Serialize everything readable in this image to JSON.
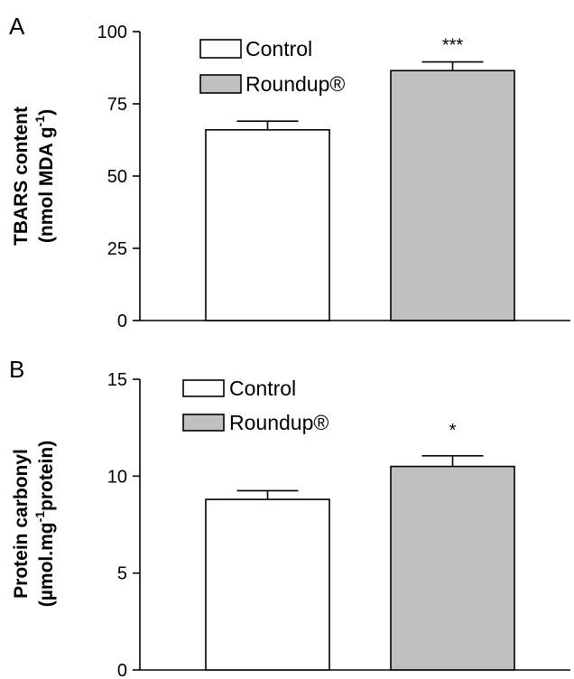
{
  "chart_data": [
    {
      "panel": "A",
      "type": "bar",
      "categories": [
        "Control",
        "Roundup®"
      ],
      "values": [
        66,
        86.5
      ],
      "errors": [
        3,
        3
      ],
      "significance": [
        "",
        "***"
      ],
      "ylabel_line1": "TBARS content",
      "ylabel_line2": "(nmol MDA g",
      "ylabel_sup": "-1",
      "ylabel_line2_end": ")",
      "ylim": [
        0,
        100
      ],
      "yticks": [
        0,
        25,
        50,
        75,
        100
      ],
      "colors": [
        "#ffffff",
        "#c0c0c0"
      ],
      "legend": [
        "Control",
        "Roundup®"
      ],
      "legend_position": "top-left",
      "grid": false
    },
    {
      "panel": "B",
      "type": "bar",
      "categories": [
        "Control",
        "Roundup®"
      ],
      "values": [
        8.8,
        10.5
      ],
      "errors": [
        0.45,
        0.55
      ],
      "significance": [
        "",
        "*"
      ],
      "ylabel_line1": "Protein carbonyl",
      "ylabel_line2": "(µmol.mg",
      "ylabel_sup": "-1",
      "ylabel_line2_end": "protein)",
      "ylim": [
        0,
        15
      ],
      "yticks": [
        0,
        5,
        10,
        15
      ],
      "colors": [
        "#ffffff",
        "#c0c0c0"
      ],
      "legend": [
        "Control",
        "Roundup®"
      ],
      "legend_position": "top-left",
      "grid": false
    }
  ]
}
